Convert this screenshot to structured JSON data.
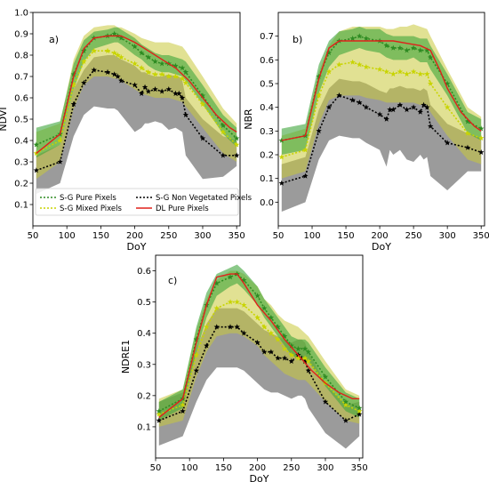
{
  "chart_data": [
    {
      "type": "line",
      "panel_label": "a)",
      "xlabel": "DoY",
      "ylabel": "NDVI",
      "xlim": [
        50,
        355
      ],
      "ylim": [
        0.0,
        1.0
      ],
      "xticks": [
        50,
        100,
        150,
        200,
        250,
        300,
        350
      ],
      "yticks": [
        0.1,
        0.2,
        0.3,
        0.4,
        0.5,
        0.6,
        0.7,
        0.8,
        0.9,
        1.0
      ],
      "legend_position": "lower-left",
      "series": [
        {
          "key": "pure",
          "name": "S-G Pure Pixels",
          "x": [
            55,
            90,
            110,
            125,
            140,
            160,
            170,
            175,
            180,
            200,
            210,
            220,
            230,
            240,
            250,
            260,
            270,
            275,
            300,
            330,
            350
          ],
          "y": [
            0.38,
            0.43,
            0.71,
            0.82,
            0.88,
            0.89,
            0.9,
            0.89,
            0.88,
            0.84,
            0.81,
            0.79,
            0.77,
            0.76,
            0.76,
            0.75,
            0.74,
            0.72,
            0.61,
            0.47,
            0.41
          ],
          "band_lo": [
            0.32,
            0.38,
            0.64,
            0.77,
            0.83,
            0.85,
            0.86,
            0.86,
            0.85,
            0.8,
            0.78,
            0.75,
            0.73,
            0.72,
            0.72,
            0.71,
            0.7,
            0.68,
            0.57,
            0.43,
            0.37
          ],
          "band_hi": [
            0.46,
            0.49,
            0.76,
            0.87,
            0.91,
            0.92,
            0.93,
            0.93,
            0.92,
            0.88,
            0.85,
            0.83,
            0.81,
            0.8,
            0.8,
            0.79,
            0.78,
            0.77,
            0.66,
            0.52,
            0.46
          ]
        },
        {
          "key": "mixed",
          "name": "S-G Mixed Pixels",
          "x": [
            55,
            90,
            110,
            125,
            140,
            160,
            170,
            175,
            180,
            200,
            210,
            220,
            230,
            240,
            250,
            260,
            270,
            275,
            300,
            330,
            350
          ],
          "y": [
            0.34,
            0.4,
            0.66,
            0.77,
            0.82,
            0.82,
            0.81,
            0.8,
            0.79,
            0.76,
            0.74,
            0.72,
            0.71,
            0.71,
            0.7,
            0.7,
            0.69,
            0.67,
            0.57,
            0.44,
            0.38
          ],
          "band_lo": [
            0.22,
            0.3,
            0.55,
            0.66,
            0.7,
            0.7,
            0.69,
            0.69,
            0.68,
            0.64,
            0.62,
            0.61,
            0.6,
            0.6,
            0.6,
            0.59,
            0.58,
            0.56,
            0.46,
            0.34,
            0.3
          ],
          "band_hi": [
            0.44,
            0.48,
            0.78,
            0.89,
            0.93,
            0.94,
            0.94,
            0.93,
            0.93,
            0.9,
            0.88,
            0.87,
            0.86,
            0.86,
            0.86,
            0.85,
            0.84,
            0.82,
            0.7,
            0.55,
            0.48
          ]
        },
        {
          "key": "nonveg",
          "name": "S-G Non Vegetated Pixels",
          "x": [
            55,
            90,
            110,
            125,
            140,
            160,
            170,
            175,
            180,
            200,
            210,
            215,
            220,
            230,
            240,
            250,
            260,
            265,
            270,
            275,
            300,
            330,
            350
          ],
          "y": [
            0.26,
            0.3,
            0.57,
            0.67,
            0.73,
            0.72,
            0.71,
            0.7,
            0.68,
            0.66,
            0.62,
            0.65,
            0.63,
            0.64,
            0.63,
            0.64,
            0.62,
            0.62,
            0.6,
            0.52,
            0.41,
            0.33,
            0.33
          ],
          "band_lo": [
            0.15,
            0.2,
            0.42,
            0.52,
            0.56,
            0.55,
            0.55,
            0.54,
            0.52,
            0.44,
            0.46,
            0.48,
            0.48,
            0.49,
            0.48,
            0.45,
            0.46,
            0.45,
            0.44,
            0.33,
            0.22,
            0.23,
            0.28
          ],
          "band_hi": [
            0.33,
            0.38,
            0.64,
            0.73,
            0.79,
            0.8,
            0.8,
            0.79,
            0.78,
            0.75,
            0.72,
            0.72,
            0.71,
            0.7,
            0.7,
            0.71,
            0.7,
            0.7,
            0.68,
            0.6,
            0.5,
            0.42,
            0.4
          ]
        },
        {
          "key": "dl",
          "name": "DL Pure Pixels",
          "x": [
            55,
            90,
            110,
            125,
            140,
            160,
            180,
            200,
            220,
            240,
            260,
            280,
            300,
            320,
            340,
            350
          ],
          "y": [
            0.34,
            0.43,
            0.7,
            0.83,
            0.88,
            0.89,
            0.89,
            0.86,
            0.82,
            0.78,
            0.74,
            0.68,
            0.6,
            0.52,
            0.46,
            0.44
          ]
        }
      ]
    },
    {
      "type": "line",
      "panel_label": "b)",
      "xlabel": "DoY",
      "ylabel": "NBR",
      "xlim": [
        50,
        355
      ],
      "ylim": [
        -0.1,
        0.8
      ],
      "xticks": [
        50,
        100,
        150,
        200,
        250,
        300,
        350
      ],
      "yticks": [
        0.0,
        0.1,
        0.2,
        0.3,
        0.4,
        0.5,
        0.6,
        0.7
      ],
      "series": [
        {
          "key": "pure",
          "name": "S-G Pure Pixels",
          "x": [
            55,
            90,
            110,
            125,
            140,
            160,
            170,
            180,
            200,
            210,
            220,
            230,
            240,
            250,
            260,
            270,
            275,
            300,
            330,
            350
          ],
          "y": [
            0.26,
            0.28,
            0.53,
            0.63,
            0.68,
            0.69,
            0.7,
            0.69,
            0.68,
            0.66,
            0.65,
            0.65,
            0.64,
            0.65,
            0.64,
            0.64,
            0.61,
            0.5,
            0.34,
            0.31
          ],
          "band_lo": [
            0.2,
            0.22,
            0.46,
            0.57,
            0.62,
            0.64,
            0.65,
            0.64,
            0.63,
            0.61,
            0.6,
            0.6,
            0.6,
            0.61,
            0.59,
            0.59,
            0.56,
            0.45,
            0.29,
            0.26
          ],
          "band_hi": [
            0.31,
            0.33,
            0.58,
            0.68,
            0.72,
            0.73,
            0.74,
            0.73,
            0.73,
            0.71,
            0.7,
            0.7,
            0.7,
            0.7,
            0.69,
            0.69,
            0.66,
            0.54,
            0.38,
            0.35
          ]
        },
        {
          "key": "mixed",
          "name": "S-G Mixed Pixels",
          "x": [
            55,
            90,
            110,
            125,
            140,
            160,
            170,
            180,
            200,
            210,
            220,
            230,
            240,
            250,
            260,
            270,
            275,
            300,
            330,
            350
          ],
          "y": [
            0.19,
            0.22,
            0.45,
            0.55,
            0.58,
            0.59,
            0.58,
            0.57,
            0.56,
            0.55,
            0.54,
            0.55,
            0.54,
            0.55,
            0.54,
            0.54,
            0.5,
            0.4,
            0.29,
            0.27
          ],
          "band_lo": [
            0.1,
            0.13,
            0.33,
            0.43,
            0.45,
            0.45,
            0.45,
            0.44,
            0.43,
            0.42,
            0.42,
            0.42,
            0.42,
            0.42,
            0.41,
            0.41,
            0.38,
            0.28,
            0.18,
            0.16
          ],
          "band_hi": [
            0.28,
            0.31,
            0.55,
            0.66,
            0.72,
            0.74,
            0.74,
            0.74,
            0.74,
            0.73,
            0.73,
            0.74,
            0.74,
            0.75,
            0.74,
            0.73,
            0.7,
            0.56,
            0.4,
            0.36
          ]
        },
        {
          "key": "nonveg",
          "name": "S-G Non Vegetated Pixels",
          "x": [
            55,
            90,
            110,
            125,
            140,
            160,
            170,
            180,
            200,
            210,
            215,
            220,
            230,
            240,
            250,
            260,
            265,
            270,
            275,
            300,
            330,
            350
          ],
          "y": [
            0.08,
            0.11,
            0.3,
            0.4,
            0.45,
            0.43,
            0.42,
            0.4,
            0.37,
            0.35,
            0.39,
            0.39,
            0.41,
            0.39,
            0.4,
            0.38,
            0.41,
            0.4,
            0.32,
            0.25,
            0.23,
            0.21
          ],
          "band_lo": [
            -0.04,
            0.0,
            0.18,
            0.26,
            0.28,
            0.27,
            0.27,
            0.25,
            0.22,
            0.15,
            0.22,
            0.2,
            0.22,
            0.18,
            0.17,
            0.2,
            0.18,
            0.19,
            0.11,
            0.05,
            0.13,
            0.13
          ],
          "band_hi": [
            0.16,
            0.19,
            0.39,
            0.48,
            0.52,
            0.51,
            0.51,
            0.5,
            0.47,
            0.46,
            0.48,
            0.48,
            0.49,
            0.48,
            0.48,
            0.47,
            0.48,
            0.47,
            0.41,
            0.33,
            0.29,
            0.27
          ]
        },
        {
          "key": "dl",
          "name": "DL Pure Pixels",
          "x": [
            55,
            90,
            110,
            125,
            140,
            160,
            180,
            200,
            220,
            240,
            260,
            275,
            290,
            300,
            320,
            340,
            350
          ],
          "y": [
            0.26,
            0.28,
            0.52,
            0.65,
            0.68,
            0.68,
            0.68,
            0.68,
            0.68,
            0.67,
            0.66,
            0.64,
            0.55,
            0.48,
            0.38,
            0.32,
            0.3
          ]
        }
      ]
    },
    {
      "type": "line",
      "panel_label": "c)",
      "xlabel": "DoY",
      "ylabel": "NDRE1",
      "xlim": [
        50,
        355
      ],
      "ylim": [
        0.0,
        0.65
      ],
      "xticks": [
        50,
        100,
        150,
        200,
        250,
        300,
        350
      ],
      "yticks": [
        0.1,
        0.2,
        0.3,
        0.4,
        0.5,
        0.6
      ],
      "series": [
        {
          "key": "pure",
          "name": "S-G Pure Pixels",
          "x": [
            55,
            90,
            110,
            125,
            140,
            160,
            170,
            180,
            200,
            210,
            220,
            230,
            240,
            250,
            260,
            270,
            275,
            300,
            330,
            350
          ],
          "y": [
            0.15,
            0.19,
            0.38,
            0.49,
            0.56,
            0.58,
            0.59,
            0.57,
            0.52,
            0.48,
            0.45,
            0.42,
            0.39,
            0.36,
            0.35,
            0.35,
            0.34,
            0.26,
            0.18,
            0.16
          ],
          "band_lo": [
            0.12,
            0.16,
            0.34,
            0.45,
            0.52,
            0.55,
            0.56,
            0.54,
            0.49,
            0.45,
            0.42,
            0.39,
            0.36,
            0.33,
            0.32,
            0.32,
            0.31,
            0.23,
            0.15,
            0.13
          ],
          "band_hi": [
            0.18,
            0.22,
            0.42,
            0.53,
            0.59,
            0.61,
            0.62,
            0.6,
            0.55,
            0.51,
            0.48,
            0.45,
            0.42,
            0.39,
            0.38,
            0.38,
            0.37,
            0.29,
            0.21,
            0.19
          ]
        },
        {
          "key": "mixed",
          "name": "S-G Mixed Pixels",
          "x": [
            55,
            90,
            110,
            125,
            140,
            160,
            170,
            180,
            200,
            210,
            220,
            230,
            240,
            250,
            260,
            270,
            275,
            300,
            330,
            350
          ],
          "y": [
            0.14,
            0.17,
            0.33,
            0.42,
            0.48,
            0.5,
            0.5,
            0.49,
            0.45,
            0.42,
            0.4,
            0.38,
            0.35,
            0.33,
            0.32,
            0.32,
            0.31,
            0.24,
            0.17,
            0.15
          ],
          "band_lo": [
            0.1,
            0.12,
            0.26,
            0.34,
            0.39,
            0.4,
            0.4,
            0.39,
            0.36,
            0.33,
            0.31,
            0.29,
            0.27,
            0.26,
            0.25,
            0.25,
            0.24,
            0.18,
            0.12,
            0.11
          ],
          "band_hi": [
            0.19,
            0.22,
            0.41,
            0.51,
            0.57,
            0.6,
            0.6,
            0.59,
            0.55,
            0.51,
            0.49,
            0.46,
            0.44,
            0.43,
            0.42,
            0.4,
            0.39,
            0.31,
            0.22,
            0.2
          ]
        },
        {
          "key": "nonveg",
          "name": "S-G Non Vegetated Pixels",
          "x": [
            55,
            90,
            110,
            125,
            140,
            160,
            170,
            180,
            200,
            210,
            220,
            230,
            240,
            250,
            260,
            265,
            270,
            275,
            300,
            330,
            350
          ],
          "y": [
            0.12,
            0.15,
            0.28,
            0.36,
            0.42,
            0.42,
            0.42,
            0.4,
            0.37,
            0.34,
            0.34,
            0.32,
            0.32,
            0.31,
            0.33,
            0.32,
            0.31,
            0.28,
            0.18,
            0.12,
            0.14
          ],
          "band_lo": [
            0.04,
            0.07,
            0.18,
            0.25,
            0.29,
            0.29,
            0.29,
            0.28,
            0.24,
            0.22,
            0.21,
            0.21,
            0.2,
            0.19,
            0.2,
            0.2,
            0.19,
            0.16,
            0.08,
            0.03,
            0.07
          ],
          "band_hi": [
            0.18,
            0.21,
            0.35,
            0.43,
            0.48,
            0.48,
            0.48,
            0.47,
            0.43,
            0.41,
            0.4,
            0.39,
            0.38,
            0.37,
            0.38,
            0.38,
            0.37,
            0.34,
            0.24,
            0.17,
            0.18
          ]
        },
        {
          "key": "dl",
          "name": "DL Pure Pixels",
          "x": [
            55,
            90,
            110,
            125,
            140,
            160,
            170,
            180,
            200,
            220,
            240,
            260,
            280,
            300,
            320,
            340,
            350
          ],
          "y": [
            0.13,
            0.19,
            0.37,
            0.49,
            0.58,
            0.59,
            0.59,
            0.56,
            0.49,
            0.44,
            0.38,
            0.33,
            0.28,
            0.24,
            0.21,
            0.19,
            0.19
          ]
        }
      ]
    }
  ],
  "styles": {
    "pure": {
      "color": "#2e8b22",
      "band": "#3da53a",
      "dash": "2,2",
      "marker": "star"
    },
    "mixed": {
      "color": "#c8d400",
      "band": "#c8c83a",
      "dash": "2,2",
      "marker": "star"
    },
    "nonveg": {
      "color": "#000000",
      "band": "#7a7a7a",
      "dash": "2,2",
      "marker": "star"
    },
    "dl": {
      "color": "#e0201a",
      "dash": "",
      "marker": "none"
    }
  }
}
